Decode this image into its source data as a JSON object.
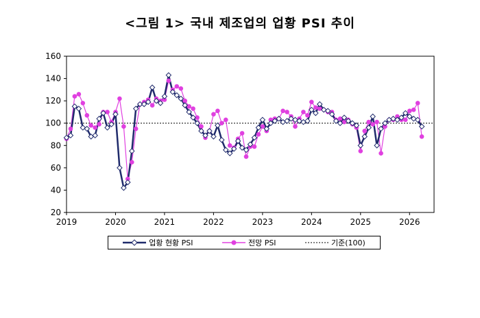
{
  "title": "<그림 1> 국내 제조업의 업황 PSI 추이",
  "colors": {
    "current": "#1f2a6b",
    "outlook": "#e040e0",
    "baseline": "#000000"
  },
  "legend": {
    "current": "업황 현황 PSI",
    "outlook": "전망 PSI",
    "baseline": "기준(100)"
  },
  "chart_data": {
    "type": "line",
    "xlabel": "",
    "ylabel": "",
    "x_ticks": [
      "2019",
      "2020",
      "2021",
      "2022",
      "2023",
      "2024",
      "2025",
      "2026"
    ],
    "y_ticks": [
      20,
      40,
      60,
      80,
      100,
      120,
      140,
      160
    ],
    "ylim": [
      20,
      160
    ],
    "xlim": [
      2019.0,
      2026.5
    ],
    "baseline": 100,
    "grid": false,
    "series": [
      {
        "name": "업황 현황 PSI",
        "marker": "diamond",
        "x": [
          2019.0,
          2019.0833,
          2019.1667,
          2019.25,
          2019.3333,
          2019.4167,
          2019.5,
          2019.5833,
          2019.6667,
          2019.75,
          2019.8333,
          2019.9167,
          2020.0,
          2020.0833,
          2020.1667,
          2020.25,
          2020.3333,
          2020.4167,
          2020.5,
          2020.5833,
          2020.6667,
          2020.75,
          2020.8333,
          2020.9167,
          2021.0,
          2021.0833,
          2021.1667,
          2021.25,
          2021.3333,
          2021.4167,
          2021.5,
          2021.5833,
          2021.6667,
          2021.75,
          2021.8333,
          2021.9167,
          2022.0,
          2022.0833,
          2022.1667,
          2022.25,
          2022.3333,
          2022.4167,
          2022.5,
          2022.5833,
          2022.6667,
          2022.75,
          2022.8333,
          2022.9167,
          2023.0,
          2023.0833,
          2023.1667,
          2023.25,
          2023.3333,
          2023.4167,
          2023.5,
          2023.5833,
          2023.6667,
          2023.75,
          2023.8333,
          2023.9167,
          2024.0,
          2024.0833,
          2024.1667,
          2024.25,
          2024.3333,
          2024.4167,
          2024.5,
          2024.5833,
          2024.6667,
          2024.75,
          2024.8333,
          2024.9167,
          2025.0,
          2025.0833,
          2025.1667,
          2025.25,
          2025.3333,
          2025.4167,
          2025.5,
          2025.5833,
          2025.6667,
          2025.75,
          2025.8333,
          2025.9167,
          2026.0,
          2026.0833,
          2026.1667,
          2026.25
        ],
        "values": [
          87,
          89,
          115,
          113,
          96,
          95,
          88,
          89,
          104,
          109,
          96,
          99,
          108,
          60,
          42,
          47,
          75,
          113,
          117,
          117,
          119,
          132,
          120,
          118,
          124,
          143,
          128,
          125,
          122,
          116,
          110,
          105,
          100,
          93,
          89,
          93,
          88,
          98,
          85,
          76,
          73,
          77,
          84,
          78,
          76,
          81,
          87,
          96,
          103,
          95,
          100,
          102,
          104,
          101,
          102,
          104,
          103,
          102,
          101,
          102,
          112,
          109,
          117,
          112,
          111,
          108,
          102,
          100,
          105,
          102,
          100,
          98,
          80,
          88,
          96,
          106,
          80,
          95,
          100,
          103,
          104,
          103,
          105,
          109,
          106,
          104,
          103,
          97
        ]
      },
      {
        "name": "전망 PSI",
        "marker": "circle",
        "x": [
          2019.0,
          2019.0833,
          2019.1667,
          2019.25,
          2019.3333,
          2019.4167,
          2019.5,
          2019.5833,
          2019.6667,
          2019.75,
          2019.8333,
          2019.9167,
          2020.0,
          2020.0833,
          2020.1667,
          2020.25,
          2020.3333,
          2020.4167,
          2020.5,
          2020.5833,
          2020.6667,
          2020.75,
          2020.8333,
          2020.9167,
          2021.0,
          2021.0833,
          2021.1667,
          2021.25,
          2021.3333,
          2021.4167,
          2021.5,
          2021.5833,
          2021.6667,
          2021.75,
          2021.8333,
          2021.9167,
          2022.0,
          2022.0833,
          2022.1667,
          2022.25,
          2022.3333,
          2022.4167,
          2022.5,
          2022.5833,
          2022.6667,
          2022.75,
          2022.8333,
          2022.9167,
          2023.0,
          2023.0833,
          2023.1667,
          2023.25,
          2023.3333,
          2023.4167,
          2023.5,
          2023.5833,
          2023.6667,
          2023.75,
          2023.8333,
          2023.9167,
          2024.0,
          2024.0833,
          2024.1667,
          2024.25,
          2024.3333,
          2024.4167,
          2024.5,
          2024.5833,
          2024.6667,
          2024.75,
          2024.8333,
          2024.9167,
          2025.0,
          2025.0833,
          2025.1667,
          2025.25,
          2025.3333,
          2025.4167,
          2025.5,
          2025.5833,
          2025.6667,
          2025.75,
          2025.8333,
          2025.9167,
          2026.0,
          2026.0833,
          2026.1667,
          2026.25
        ],
        "values": [
          86,
          95,
          124,
          126,
          118,
          107,
          98,
          96,
          99,
          110,
          110,
          101,
          110,
          122,
          97,
          50,
          65,
          95,
          117,
          119,
          121,
          116,
          122,
          120,
          121,
          138,
          130,
          133,
          131,
          120,
          115,
          113,
          105,
          97,
          87,
          93,
          108,
          111,
          100,
          103,
          80,
          78,
          86,
          91,
          70,
          79,
          79,
          90,
          97,
          93,
          103,
          104,
          104,
          111,
          110,
          106,
          97,
          104,
          110,
          107,
          119,
          114,
          113,
          112,
          110,
          110,
          103,
          104,
          101,
          103,
          99,
          96,
          75,
          93,
          101,
          99,
          101,
          73,
          97,
          103,
          103,
          106,
          103,
          103,
          111,
          112,
          118,
          88
        ]
      }
    ]
  }
}
